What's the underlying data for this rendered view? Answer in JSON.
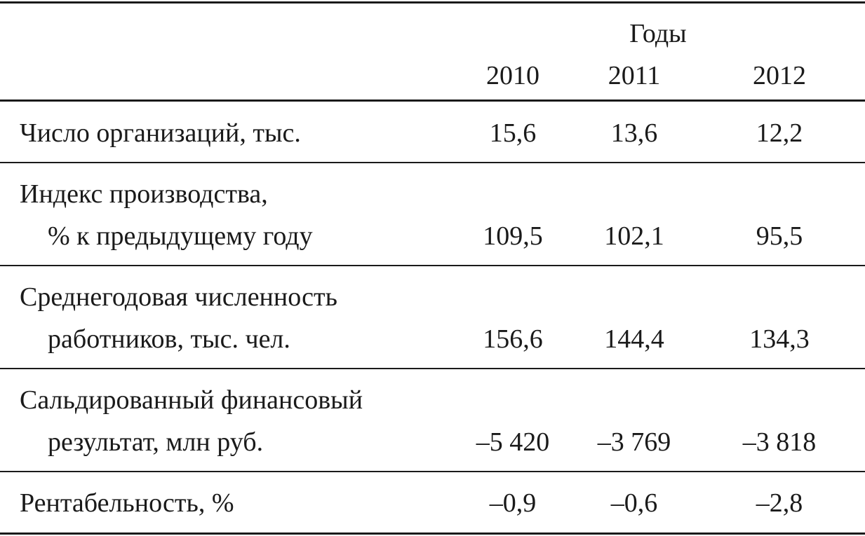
{
  "table": {
    "group_header": "Годы",
    "years": [
      "2010",
      "2011",
      "2012"
    ],
    "rows": [
      {
        "label": [
          "Число организаций, тыс."
        ],
        "values": [
          "15,6",
          "13,6",
          "12,2"
        ]
      },
      {
        "label": [
          "Индекс производства,",
          "% к предыдущему году"
        ],
        "values": [
          "109,5",
          "102,1",
          "95,5"
        ]
      },
      {
        "label": [
          "Среднегодовая численность",
          "работников, тыс. чел."
        ],
        "values": [
          "156,6",
          "144,4",
          "134,3"
        ]
      },
      {
        "label": [
          "Сальдированный финансовый",
          "результат, млн руб."
        ],
        "values": [
          "–5 420",
          "–3 769",
          "–3 818"
        ]
      },
      {
        "label": [
          "Рентабельность, %"
        ],
        "values": [
          "–0,9",
          "–0,6",
          "–2,8"
        ]
      }
    ]
  }
}
